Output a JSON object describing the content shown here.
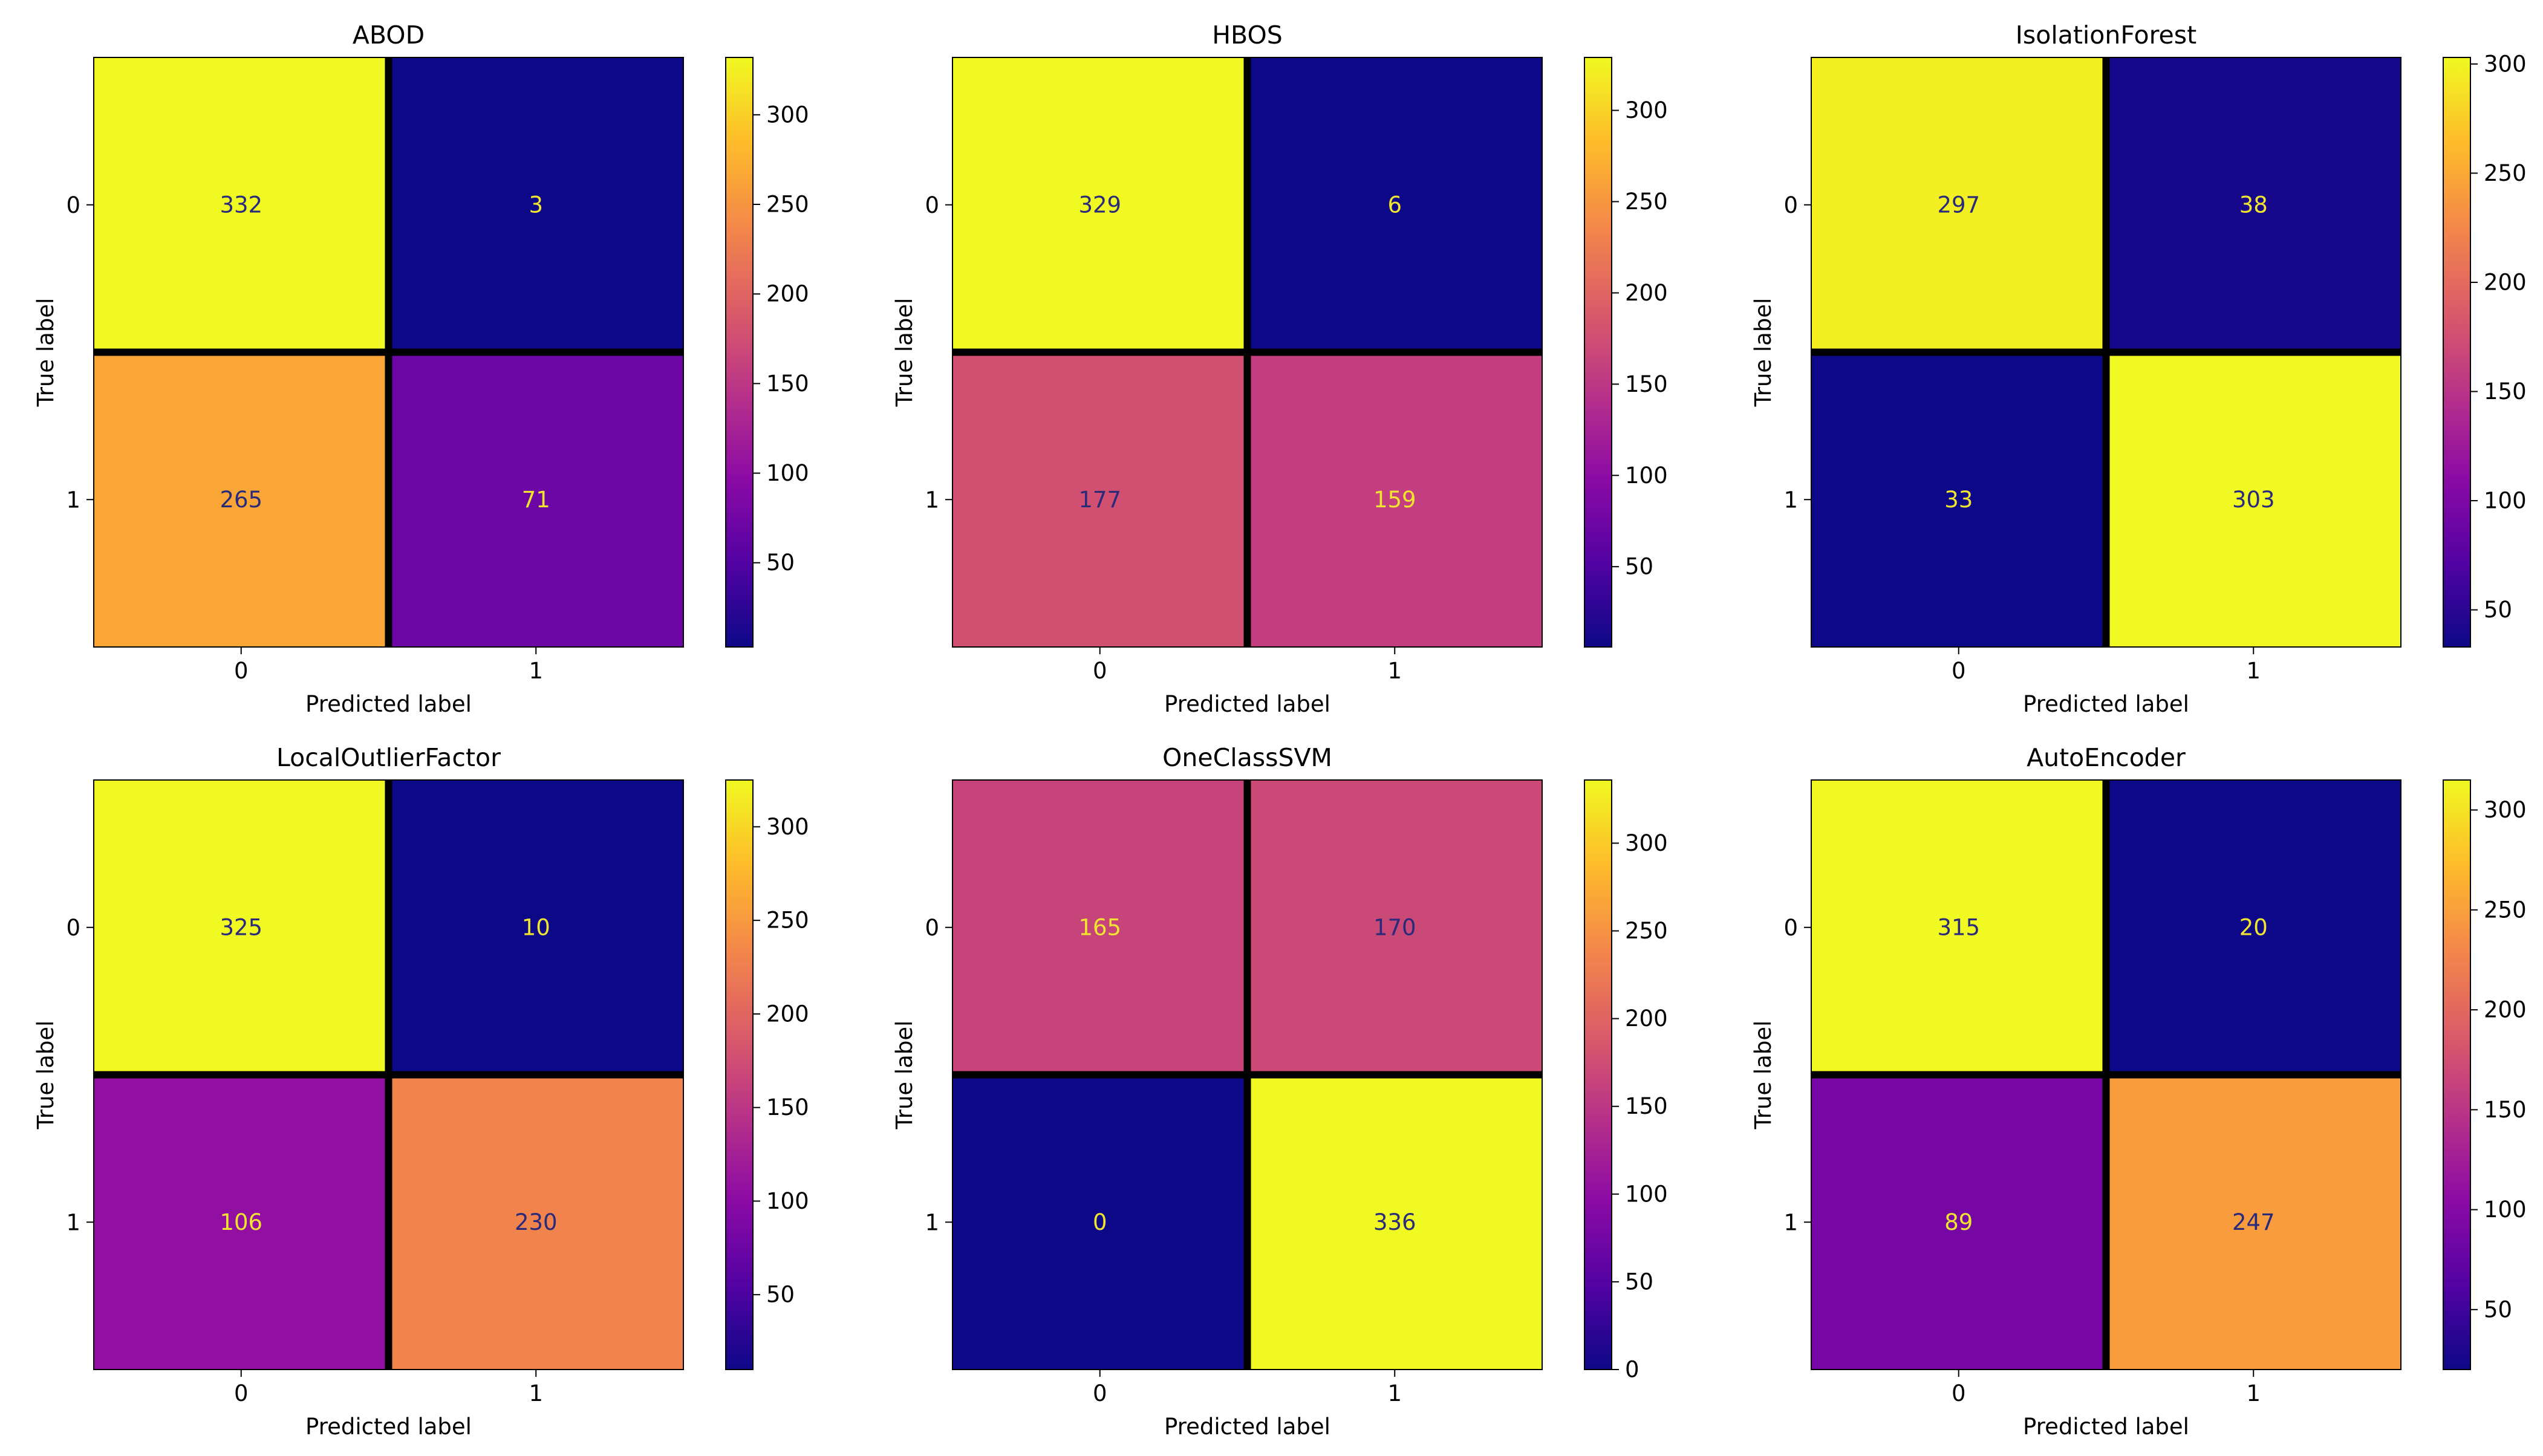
{
  "chart_data": [
    {
      "type": "heatmap",
      "title": "ABOD",
      "xlabel": "Predicted label",
      "ylabel": "True label",
      "xticks": [
        "0",
        "1"
      ],
      "yticks": [
        "0",
        "1"
      ],
      "matrix": [
        [
          332,
          3
        ],
        [
          265,
          71
        ]
      ],
      "colorbar": {
        "range": [
          3,
          332
        ],
        "ticks": [
          50,
          100,
          150,
          200,
          250,
          300
        ]
      }
    },
    {
      "type": "heatmap",
      "title": "HBOS",
      "xlabel": "Predicted label",
      "ylabel": "True label",
      "xticks": [
        "0",
        "1"
      ],
      "yticks": [
        "0",
        "1"
      ],
      "matrix": [
        [
          329,
          6
        ],
        [
          177,
          159
        ]
      ],
      "colorbar": {
        "range": [
          6,
          329
        ],
        "ticks": [
          50,
          100,
          150,
          200,
          250,
          300
        ]
      }
    },
    {
      "type": "heatmap",
      "title": "IsolationForest",
      "xlabel": "Predicted label",
      "ylabel": "True label",
      "xticks": [
        "0",
        "1"
      ],
      "yticks": [
        "0",
        "1"
      ],
      "matrix": [
        [
          297,
          38
        ],
        [
          33,
          303
        ]
      ],
      "colorbar": {
        "range": [
          33,
          303
        ],
        "ticks": [
          50,
          100,
          150,
          200,
          250,
          300
        ]
      }
    },
    {
      "type": "heatmap",
      "title": "LocalOutlierFactor",
      "xlabel": "Predicted label",
      "ylabel": "True label",
      "xticks": [
        "0",
        "1"
      ],
      "yticks": [
        "0",
        "1"
      ],
      "matrix": [
        [
          325,
          10
        ],
        [
          106,
          230
        ]
      ],
      "colorbar": {
        "range": [
          10,
          325
        ],
        "ticks": [
          50,
          100,
          150,
          200,
          250,
          300
        ]
      }
    },
    {
      "type": "heatmap",
      "title": "OneClassSVM",
      "xlabel": "Predicted label",
      "ylabel": "True label",
      "xticks": [
        "0",
        "1"
      ],
      "yticks": [
        "0",
        "1"
      ],
      "matrix": [
        [
          165,
          170
        ],
        [
          0,
          336
        ]
      ],
      "colorbar": {
        "range": [
          0,
          336
        ],
        "ticks": [
          0,
          50,
          100,
          150,
          200,
          250,
          300
        ]
      }
    },
    {
      "type": "heatmap",
      "title": "AutoEncoder",
      "xlabel": "Predicted label",
      "ylabel": "True label",
      "xticks": [
        "0",
        "1"
      ],
      "yticks": [
        "0",
        "1"
      ],
      "matrix": [
        [
          315,
          20
        ],
        [
          89,
          247
        ]
      ],
      "colorbar": {
        "range": [
          20,
          315
        ],
        "ticks": [
          50,
          100,
          150,
          200,
          250,
          300
        ]
      }
    }
  ],
  "colors": {
    "colormap": [
      "#0d0887",
      "#5302a3",
      "#8b0aa5",
      "#b83289",
      "#db5c68",
      "#f48849",
      "#febc2a",
      "#f0f921"
    ],
    "cell_text_dark": "#2a2a7a",
    "cell_text_light": "#f2e530",
    "grid_line": "#000000"
  }
}
